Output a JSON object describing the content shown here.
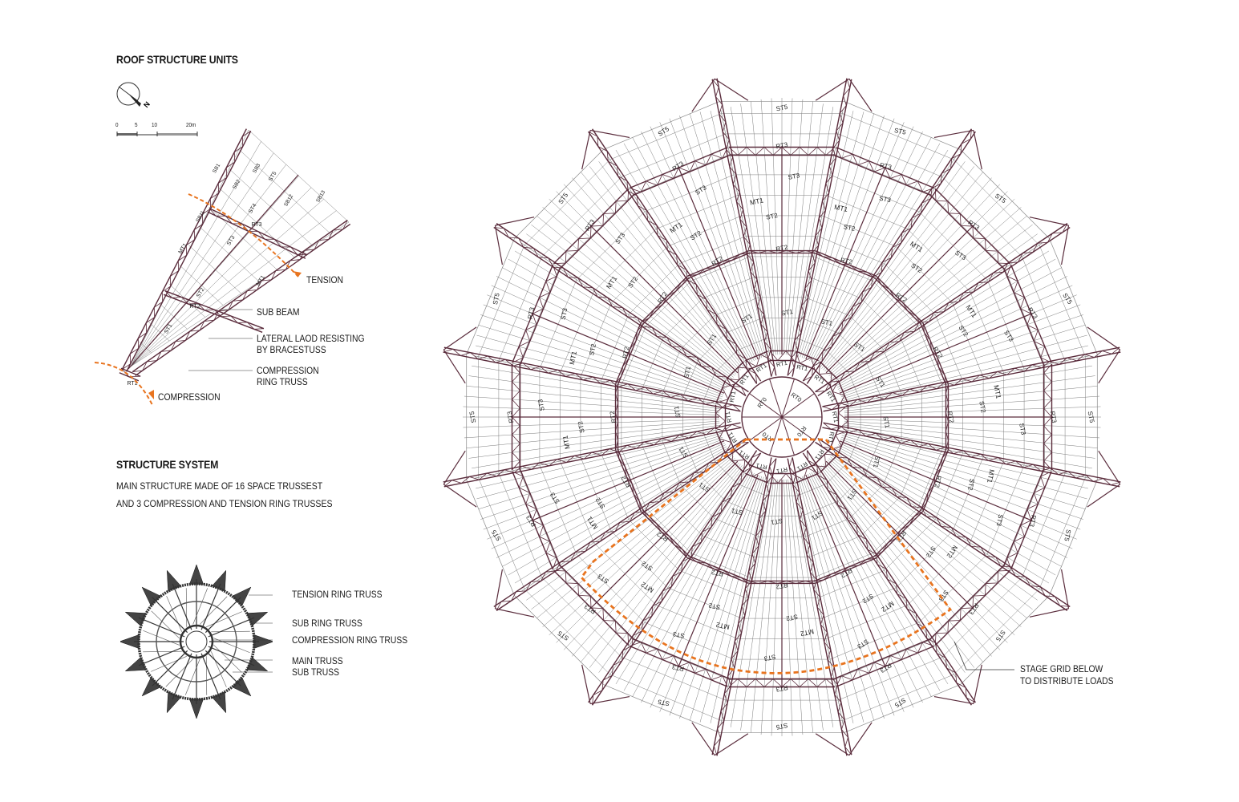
{
  "titles": {
    "roof_units": "ROOF STRUCTURE UNITS",
    "structure_system": "STRUCTURE SYSTEM"
  },
  "structure_description": [
    "MAIN STRUCTURE MADE OF 16 SPACE TRUSSEST",
    "AND 3 COMPRESSION AND TENSION RING TRUSSES"
  ],
  "north_arrow": {
    "label": "N",
    "icon": "north-arrow-icon"
  },
  "scale_bar": {
    "ticks": [
      "0",
      "5",
      "10",
      "20m"
    ]
  },
  "unit_diagram": {
    "annotations": {
      "tension": "TENSION",
      "sub_beam": "SUB BEAM",
      "lateral_1": "LATERAL LAOD RESISTING",
      "lateral_2": "BY BRACESTUSS",
      "compression_ring_1": "COMPRESSION",
      "compression_ring_2": "RING TRUSS",
      "compression": "COMPRESSION"
    },
    "member_labels": [
      "MT1",
      "ST5",
      "ST4",
      "ST3",
      "ST2",
      "ST1",
      "SB1",
      "SB2",
      "SB3",
      "SB11",
      "SB12",
      "SB13",
      "RT1",
      "RT2",
      "RT3"
    ]
  },
  "system_legend": [
    "TENSION RING TRUSS",
    "SUB RING TRUSS",
    "COMPRESSION RING TRUSS",
    "MAIN TRUSS",
    "SUB TRUSS"
  ],
  "plan": {
    "callout_1": "STAGE GRID BELOW",
    "callout_2": "TO DISTRIBUTE LOADS",
    "ring_labels": [
      "RT0",
      "RT1",
      "RT1A",
      "RT2",
      "RT2A",
      "RT3",
      "RT3A"
    ],
    "main_truss_labels": [
      "MT1",
      "MT2"
    ],
    "sub_truss_labels": [
      "ST1",
      "ST2",
      "ST3",
      "ST5",
      "ST1A",
      "ST2A",
      "ST3A",
      "ST4A",
      "ST5A"
    ]
  },
  "colors": {
    "truss": "#5a2c3c",
    "grid": "#7d7d7d",
    "highlight": "#e8741f"
  }
}
